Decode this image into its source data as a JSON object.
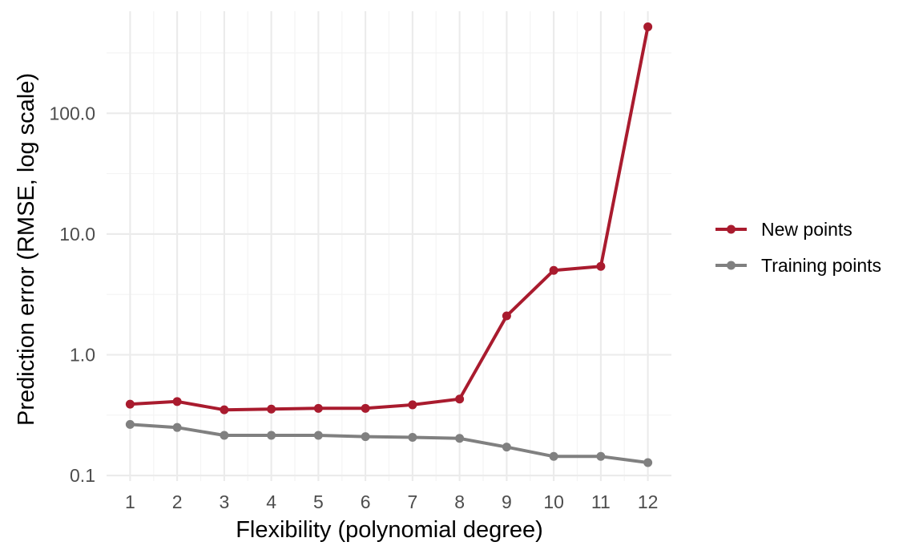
{
  "chart_data": {
    "type": "line",
    "title": "",
    "xlabel": "Flexibility (polynomial degree)",
    "ylabel": "Prediction error (RMSE, log scale)",
    "x": [
      1,
      2,
      3,
      4,
      5,
      6,
      7,
      8,
      9,
      10,
      11,
      12
    ],
    "x_tick_labels": [
      "1",
      "2",
      "3",
      "4",
      "5",
      "6",
      "7",
      "8",
      "9",
      "10",
      "11",
      "12"
    ],
    "y_scale": "log",
    "y_ticks": [
      0.1,
      1,
      10,
      100
    ],
    "y_tick_labels": [
      "0.1",
      "1.0",
      "10.0",
      "100.0"
    ],
    "xlim": [
      0.5,
      12.5
    ],
    "ylim": [
      0.09,
      700
    ],
    "grid": true,
    "legend_position": "right",
    "series": [
      {
        "name": "New points",
        "color": "#a91b2e",
        "values": [
          0.39,
          0.41,
          0.35,
          0.355,
          0.36,
          0.36,
          0.385,
          0.43,
          2.1,
          5.0,
          5.4,
          520
        ]
      },
      {
        "name": "Training points",
        "color": "#808080",
        "values": [
          0.265,
          0.25,
          0.215,
          0.215,
          0.215,
          0.21,
          0.207,
          0.203,
          0.172,
          0.144,
          0.144,
          0.128
        ]
      }
    ]
  }
}
